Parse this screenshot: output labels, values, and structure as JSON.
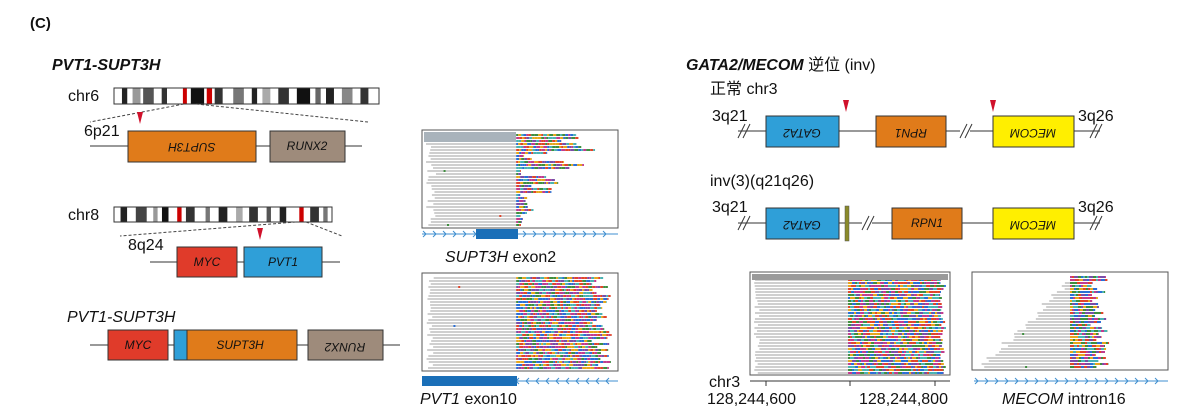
{
  "panel_label": "(C)",
  "colors": {
    "orange": "#e07b1a",
    "brown": "#9e8b7b",
    "red": "#e03b2a",
    "blue": "#2f9fd8",
    "yellow": "#ffef00",
    "marker": "#d0112b",
    "arrow": "#3f8fd0",
    "exon_bar": "#1a6fb8"
  },
  "left": {
    "title": "PVT1-SUPT3H",
    "chr6": {
      "label": "chr6",
      "band": "6p21",
      "genes": [
        "SUPT3H",
        "RUNX2"
      ]
    },
    "chr8": {
      "label": "chr8",
      "band": "8q24",
      "genes": [
        "MYC",
        "PVT1"
      ]
    },
    "fusion": {
      "label": "PVT1-SUPT3H",
      "genes": [
        "MYC",
        "SUPT3H",
        "RUNX2"
      ]
    },
    "reads_top_caption_gene": "SUPT3H",
    "reads_top_caption_suffix": " exon2",
    "reads_bottom_caption_gene": "PVT1",
    "reads_bottom_caption_suffix": " exon10"
  },
  "right": {
    "title_gene": "GATA2/MECOM",
    "title_suffix": " 逆位 (inv)",
    "normal_label": "正常 chr3",
    "normal": {
      "left_band": "3q21",
      "right_band": "3q26",
      "genes": [
        "GATA2",
        "RPN1",
        "MECOM"
      ]
    },
    "inv_label": "inv(3)(q21q26)",
    "inverted": {
      "left_band": "3q21",
      "right_band": "3q26",
      "genes": [
        "GATA2",
        "RPN1",
        "MECOM"
      ]
    },
    "axis_chr": "chr3",
    "axis_ticks": [
      "128,244,600",
      "128,244,800"
    ],
    "reads_caption_gene": "MECOM",
    "reads_caption_suffix": " intron16"
  }
}
